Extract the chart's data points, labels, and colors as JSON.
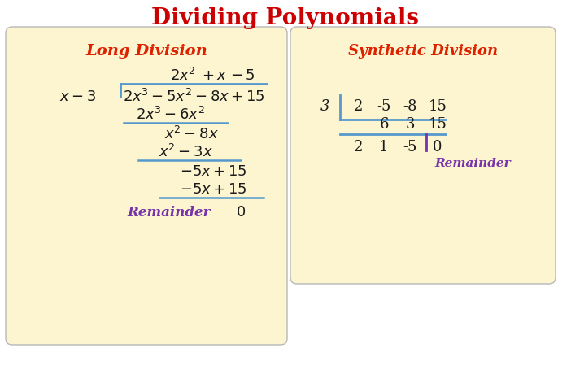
{
  "title": "Dividing Polynomials",
  "title_color": "#cc0000",
  "title_fontsize": 20,
  "bg_color": "#ffffff",
  "panel_color": "#fdf5d0",
  "panel_edge_color": "#b8b8b8",
  "left_label": "Long Division",
  "right_label": "Synthetic Division",
  "label_color": "#dd2200",
  "math_color": "#1a1a1a",
  "blue_color": "#5599cc",
  "purple_color": "#7733aa",
  "panel_lw": 1.0
}
